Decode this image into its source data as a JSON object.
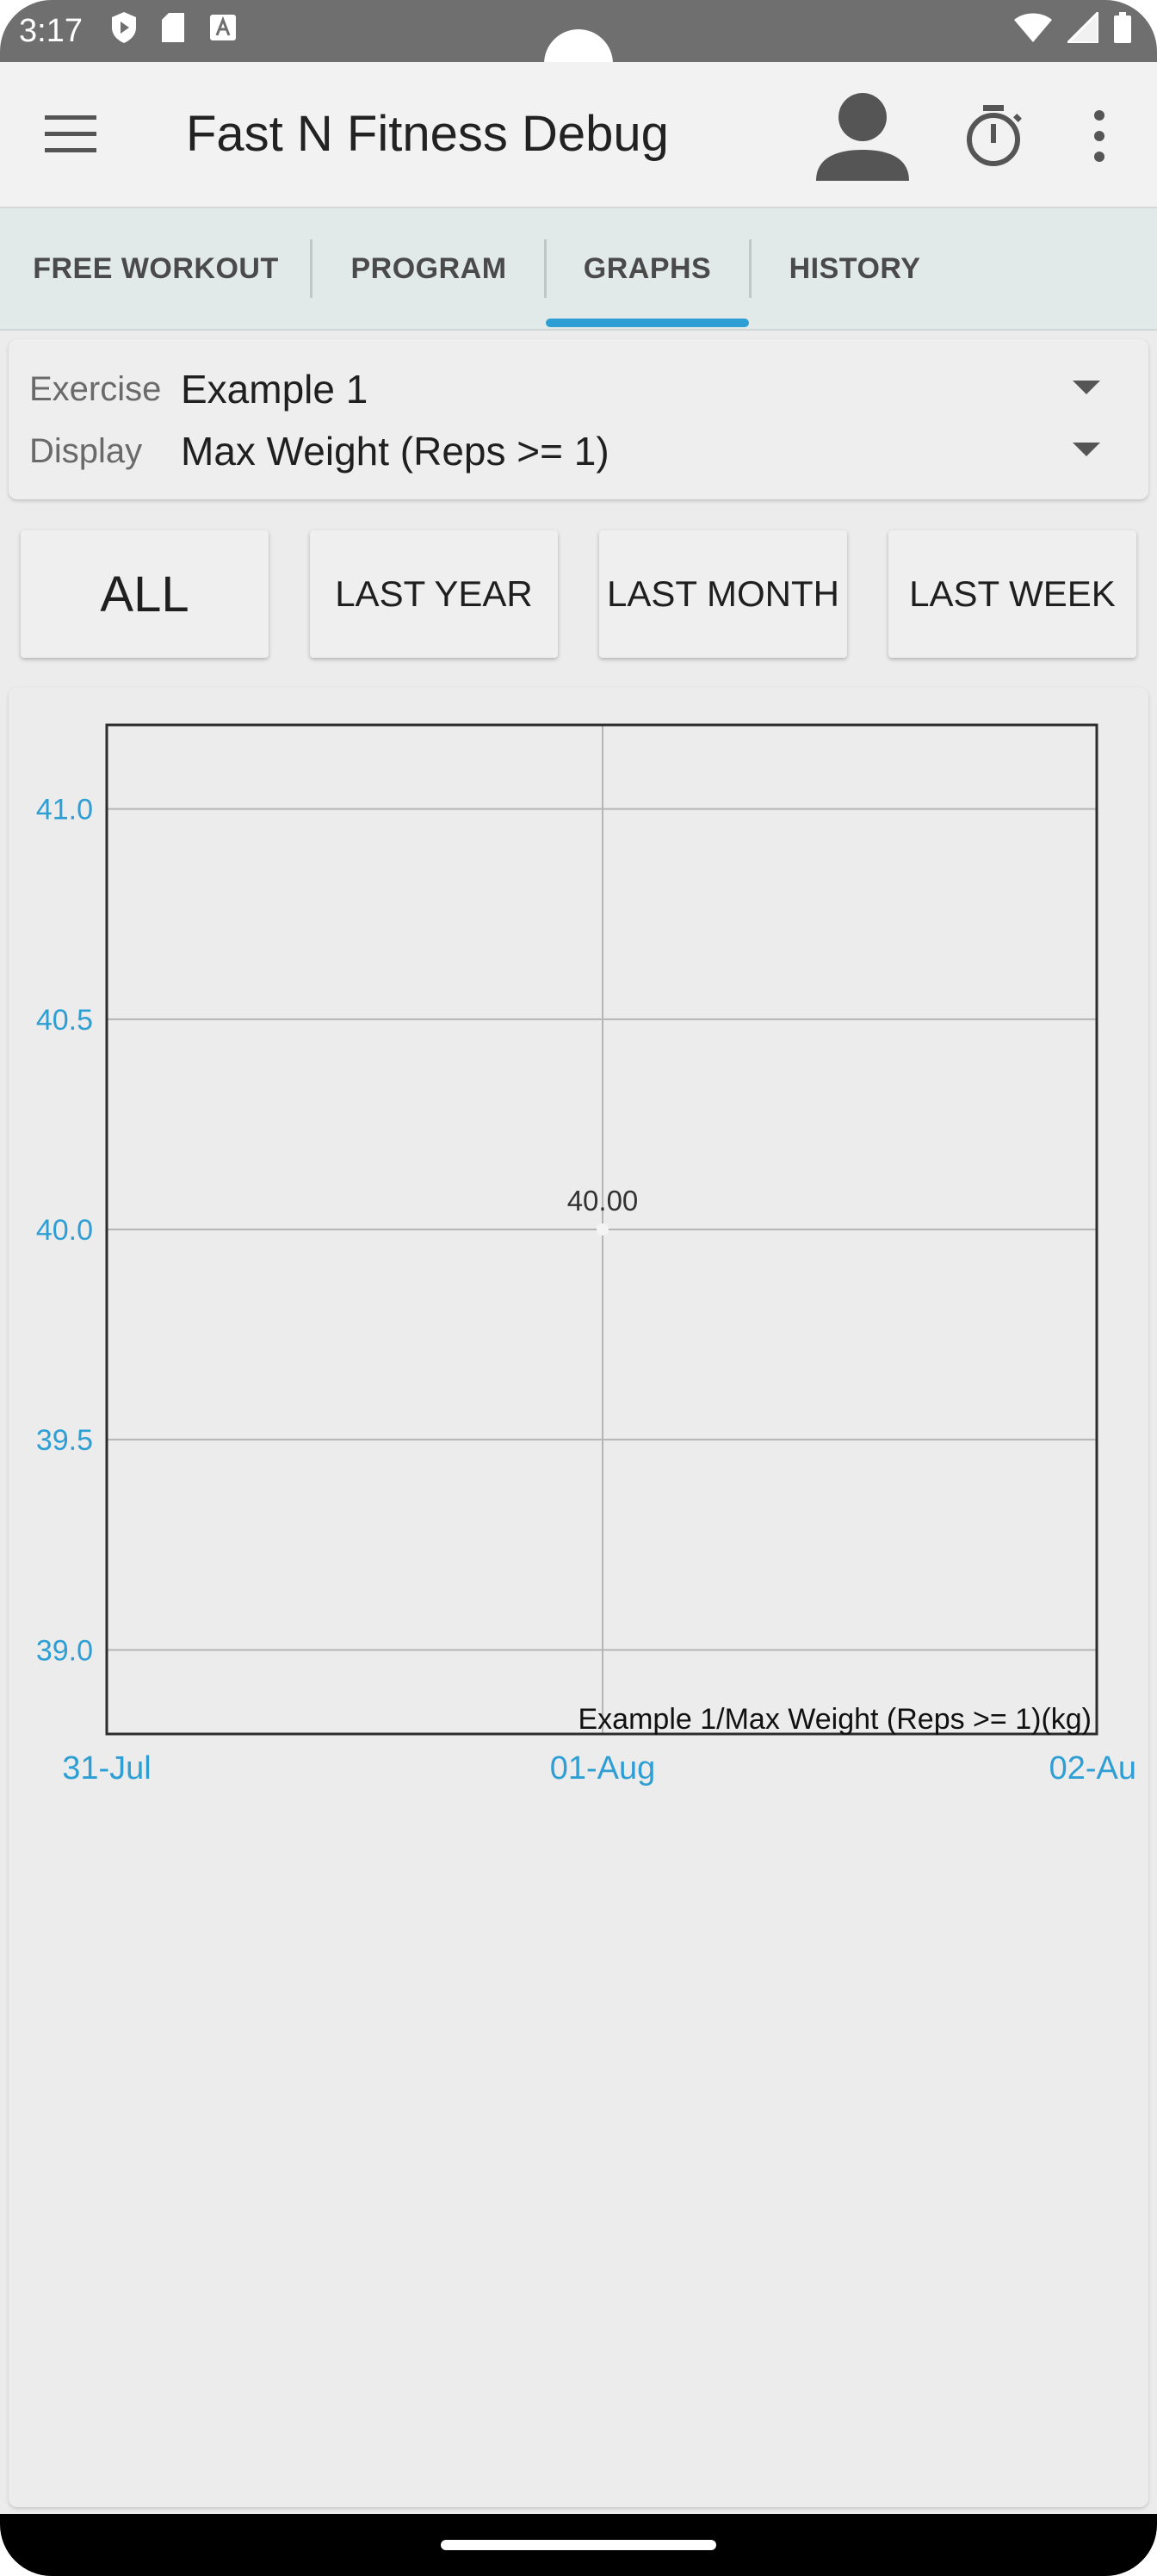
{
  "status_bar": {
    "time": "3:17"
  },
  "app_bar": {
    "title": "Fast N Fitness Debug"
  },
  "tabs": [
    {
      "label": "FREE WORKOUT"
    },
    {
      "label": "PROGRAM"
    },
    {
      "label": "GRAPHS"
    },
    {
      "label": "HISTORY"
    }
  ],
  "selector": {
    "exercise_label": "Exercise",
    "exercise_value": "Example 1",
    "display_label": "Display",
    "display_value": "Max Weight (Reps >= 1)"
  },
  "ranges": [
    {
      "label": "ALL"
    },
    {
      "label": "LAST YEAR"
    },
    {
      "label": "LAST MONTH"
    },
    {
      "label": "LAST WEEK"
    }
  ],
  "colors": {
    "accent": "#2e9fd4",
    "axis_label": "#2e9fd4"
  },
  "chart_data": {
    "type": "line",
    "x_tick_labels": [
      "31-Jul",
      "01-Aug",
      "02-Au"
    ],
    "y_tick_labels": [
      "41.0",
      "40.5",
      "40.0",
      "39.5",
      "39.0"
    ],
    "ylim": [
      38.8,
      41.2
    ],
    "series": [
      {
        "name": "Example 1/Max Weight (Reps >= 1)(kg)",
        "points": [
          {
            "x": "01-Aug",
            "y": 40.0,
            "label": "40.00"
          }
        ]
      }
    ],
    "grid": true,
    "legend": "bottom-right"
  }
}
